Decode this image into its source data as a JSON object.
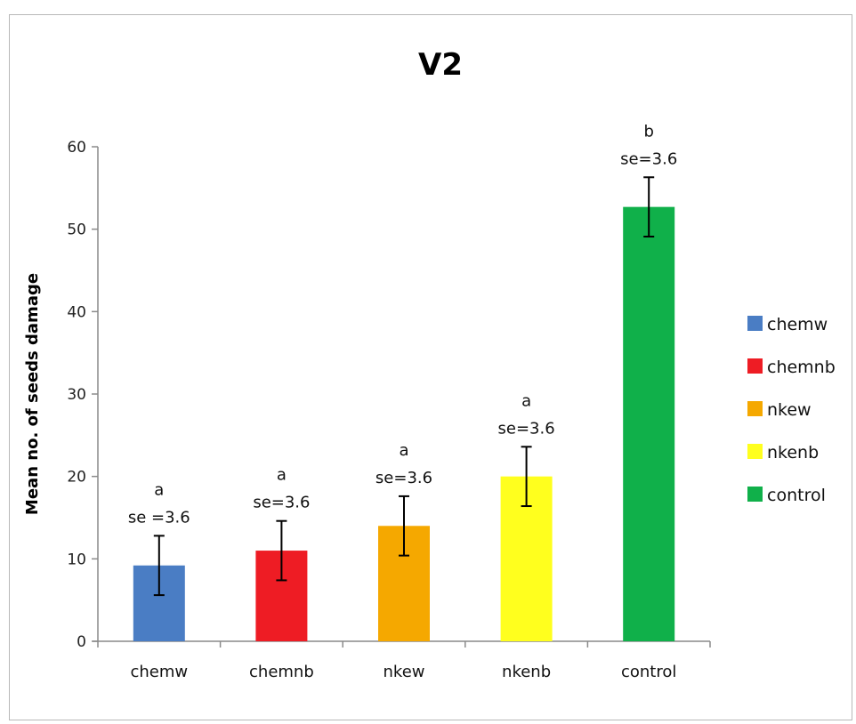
{
  "chart_data": {
    "type": "bar",
    "title": "V2",
    "xlabel": "",
    "ylabel": "Mean no. of seeds damage",
    "ylim": [
      0,
      60
    ],
    "yticks": [
      0,
      10,
      20,
      30,
      40,
      50,
      60
    ],
    "categories": [
      "chemw",
      "chemnb",
      "nkew",
      "nkenb",
      "control"
    ],
    "values": [
      9.2,
      11,
      14,
      20,
      52.7
    ],
    "error": [
      3.6,
      3.6,
      3.6,
      3.6,
      3.6
    ],
    "colors": [
      "#4a7dc4",
      "#ee1c24",
      "#f5a800",
      "#ffff1e",
      "#10b04a"
    ],
    "letters": [
      "a",
      "a",
      "a",
      "a",
      "b"
    ],
    "se_labels": [
      "se =3.6",
      "se=3.6",
      "se=3.6",
      "se=3.6",
      "se=3.6"
    ],
    "legend": {
      "position": "right",
      "entries": [
        "chemw",
        "chemnb",
        "nkew",
        "nkenb",
        "control"
      ]
    },
    "grid": false
  }
}
